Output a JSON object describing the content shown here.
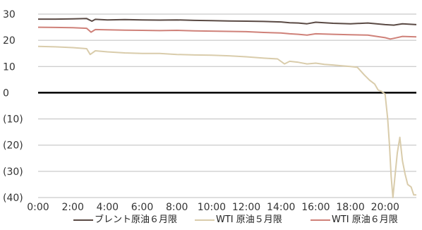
{
  "chart_data": {
    "type": "line",
    "title": "",
    "xlabel": "",
    "ylabel": "",
    "x_ticks": [
      "0:00",
      "2:00",
      "4:00",
      "6:00",
      "8:00",
      "10:00",
      "12:00",
      "14:00",
      "16:00",
      "18:00",
      "20:00"
    ],
    "x_tick_hours": [
      0,
      2,
      4,
      6,
      8,
      10,
      12,
      14,
      16,
      18,
      20
    ],
    "xlim": [
      0,
      21.8
    ],
    "y_ticks": [
      30,
      20,
      10,
      0,
      -10,
      -20,
      -30,
      -40
    ],
    "y_tick_labels": [
      "30",
      "20",
      "10",
      "0",
      "(10)",
      "(20)",
      "(30)",
      "(40)"
    ],
    "ylim": [
      -40,
      30
    ],
    "zero_line": true,
    "legend_position": "bottom",
    "series": [
      {
        "name": "ブレント原油６月限",
        "color": "#5a4a44",
        "points": [
          [
            0,
            28.1
          ],
          [
            1,
            28.1
          ],
          [
            2,
            28.2
          ],
          [
            2.8,
            28.3
          ],
          [
            3.1,
            27.3
          ],
          [
            3.3,
            28.0
          ],
          [
            4,
            27.8
          ],
          [
            5,
            27.9
          ],
          [
            6,
            27.8
          ],
          [
            7,
            27.7
          ],
          [
            8,
            27.8
          ],
          [
            9,
            27.6
          ],
          [
            10,
            27.5
          ],
          [
            11,
            27.4
          ],
          [
            12,
            27.3
          ],
          [
            13,
            27.2
          ],
          [
            14,
            27.0
          ],
          [
            14.5,
            26.7
          ],
          [
            15,
            26.6
          ],
          [
            15.5,
            26.3
          ],
          [
            16,
            26.9
          ],
          [
            17,
            26.5
          ],
          [
            18,
            26.3
          ],
          [
            19,
            26.6
          ],
          [
            20,
            26.0
          ],
          [
            20.5,
            25.8
          ],
          [
            21,
            26.3
          ],
          [
            21.8,
            26.0
          ]
        ]
      },
      {
        "name": "WTI 原油５月限",
        "color": "#d9ccab",
        "points": [
          [
            0,
            17.7
          ],
          [
            1,
            17.5
          ],
          [
            2,
            17.2
          ],
          [
            2.8,
            16.8
          ],
          [
            3.0,
            14.6
          ],
          [
            3.3,
            16.0
          ],
          [
            4,
            15.6
          ],
          [
            5,
            15.2
          ],
          [
            6,
            15.0
          ],
          [
            7,
            15.0
          ],
          [
            8,
            14.6
          ],
          [
            9,
            14.4
          ],
          [
            10,
            14.3
          ],
          [
            11,
            14.1
          ],
          [
            12,
            13.7
          ],
          [
            13,
            13.2
          ],
          [
            13.8,
            12.9
          ],
          [
            14.2,
            11.0
          ],
          [
            14.5,
            12.0
          ],
          [
            15,
            11.6
          ],
          [
            15.5,
            11.0
          ],
          [
            16,
            11.3
          ],
          [
            16.5,
            10.8
          ],
          [
            17,
            10.6
          ],
          [
            17.5,
            10.3
          ],
          [
            18,
            10.0
          ],
          [
            18.4,
            9.7
          ],
          [
            18.8,
            6.8
          ],
          [
            19.1,
            4.8
          ],
          [
            19.4,
            3.3
          ],
          [
            19.6,
            1.0
          ],
          [
            19.8,
            0.5
          ],
          [
            20.0,
            -0.5
          ],
          [
            20.15,
            -10.0
          ],
          [
            20.25,
            -20.0
          ],
          [
            20.35,
            -32.0
          ],
          [
            20.45,
            -40.0
          ],
          [
            20.55,
            -33.0
          ],
          [
            20.7,
            -23.0
          ],
          [
            20.85,
            -17.0
          ],
          [
            21.0,
            -26.0
          ],
          [
            21.15,
            -31.0
          ],
          [
            21.3,
            -35.0
          ],
          [
            21.5,
            -36.0
          ],
          [
            21.65,
            -39.0
          ],
          [
            21.8,
            -39.0
          ]
        ]
      },
      {
        "name": "WTI 原油６月限",
        "color": "#cf8179",
        "points": [
          [
            0,
            25.0
          ],
          [
            1,
            24.9
          ],
          [
            2,
            24.8
          ],
          [
            2.8,
            24.6
          ],
          [
            3.05,
            23.1
          ],
          [
            3.3,
            24.1
          ],
          [
            4,
            24.0
          ],
          [
            5,
            23.9
          ],
          [
            6,
            23.8
          ],
          [
            7,
            23.7
          ],
          [
            8,
            23.8
          ],
          [
            9,
            23.6
          ],
          [
            10,
            23.5
          ],
          [
            11,
            23.4
          ],
          [
            12,
            23.3
          ],
          [
            13,
            23.0
          ],
          [
            14,
            22.8
          ],
          [
            14.5,
            22.5
          ],
          [
            15,
            22.3
          ],
          [
            15.5,
            22.0
          ],
          [
            16,
            22.5
          ],
          [
            17,
            22.3
          ],
          [
            18,
            22.1
          ],
          [
            19,
            22.0
          ],
          [
            20.0,
            21.0
          ],
          [
            20.3,
            20.5
          ],
          [
            20.6,
            20.9
          ],
          [
            21,
            21.5
          ],
          [
            21.8,
            21.3
          ]
        ]
      }
    ]
  }
}
